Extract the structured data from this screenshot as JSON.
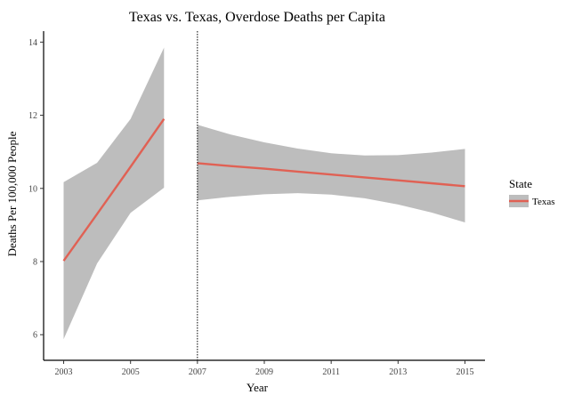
{
  "chart_data": {
    "type": "line",
    "title": "Texas vs. Texas, Overdose Deaths per Capita",
    "xlabel": "Year",
    "ylabel": "Deaths Per 100,000 People",
    "xlim": [
      2002.4,
      2015.6
    ],
    "ylim": [
      5.3,
      14.3
    ],
    "x_ticks": [
      2003,
      2005,
      2007,
      2009,
      2011,
      2013,
      2015
    ],
    "y_ticks": [
      6,
      8,
      10,
      12,
      14
    ],
    "grid": false,
    "vline": {
      "x": 2007,
      "style": "dotted"
    },
    "legend": {
      "title": "State",
      "placement": "right",
      "entries": [
        "Texas"
      ]
    },
    "series": [
      {
        "name": "Texas",
        "color": "#e06154",
        "segments": [
          {
            "x": [
              2003,
              2004,
              2005,
              2006
            ],
            "fit": [
              8.02,
              9.3,
              10.59,
              11.9
            ],
            "lower": [
              5.88,
              7.95,
              9.33,
              10.02
            ],
            "upper": [
              10.17,
              10.7,
              11.9,
              13.85
            ]
          },
          {
            "x": [
              2007,
              2008,
              2009,
              2010,
              2011,
              2012,
              2013,
              2014,
              2015
            ],
            "fit": [
              10.69,
              10.61,
              10.54,
              10.46,
              10.38,
              10.3,
              10.22,
              10.14,
              10.06
            ],
            "lower": [
              9.67,
              9.77,
              9.84,
              9.87,
              9.83,
              9.73,
              9.56,
              9.34,
              9.07
            ],
            "upper": [
              11.74,
              11.47,
              11.26,
              11.09,
              10.96,
              10.9,
              10.91,
              10.98,
              11.08
            ]
          }
        ]
      }
    ],
    "band_color": "#bdbdbd"
  }
}
